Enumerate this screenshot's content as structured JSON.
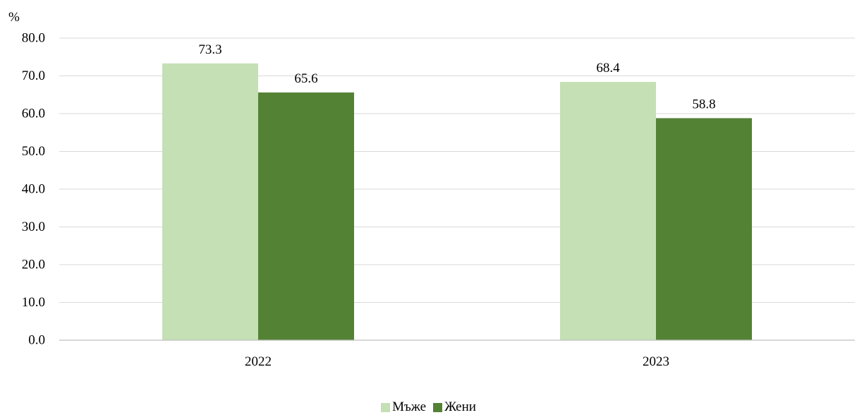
{
  "chart_data": {
    "type": "bar",
    "title": "",
    "xlabel": "",
    "ylabel": "%",
    "categories": [
      "2022",
      "2023"
    ],
    "series": [
      {
        "name": "Мъже",
        "values": [
          73.3,
          68.4
        ],
        "color": "#c5e0b4"
      },
      {
        "name": "Жени",
        "values": [
          65.6,
          58.8
        ],
        "color": "#548235"
      }
    ],
    "ylim": [
      0,
      80
    ],
    "yticks": [
      "0.0",
      "10.0",
      "20.0",
      "30.0",
      "40.0",
      "50.0",
      "60.0",
      "70.0",
      "80.0"
    ],
    "data_labels": [
      [
        "73.3",
        "68.4"
      ],
      [
        "65.6",
        "58.8"
      ]
    ],
    "grid": true,
    "legend_position": "bottom-center",
    "gridline_color": "#d9d9d9",
    "axis_line_color": "#bfbfbf"
  }
}
